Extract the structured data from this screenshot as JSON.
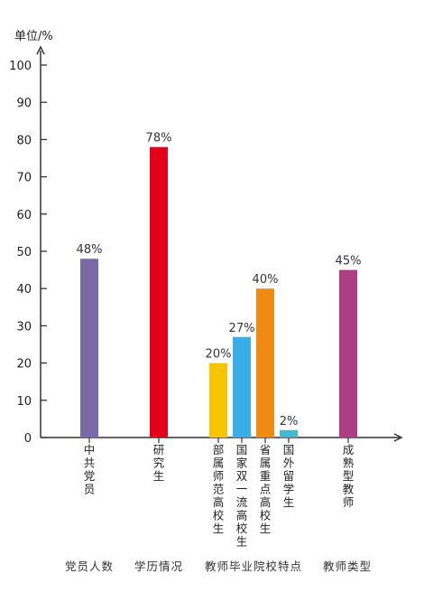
{
  "chart_data": {
    "type": "bar",
    "unit_label": "单位/%",
    "ylim": [
      0,
      100
    ],
    "yticks": [
      0,
      10,
      20,
      30,
      40,
      50,
      60,
      70,
      80,
      90,
      100
    ],
    "grid": false,
    "bars": [
      {
        "category": "中共党员",
        "value": 48,
        "label": "48%",
        "color": "#7b6aa8"
      },
      {
        "category": "研究生",
        "value": 78,
        "label": "78%",
        "color": "#e2001a"
      },
      {
        "category": "部属师范高校生",
        "value": 20,
        "label": "20%",
        "color": "#f8c400"
      },
      {
        "category": "国家双一流高校生",
        "value": 27,
        "label": "27%",
        "color": "#3aaee8"
      },
      {
        "category": "省属重点高校生",
        "value": 40,
        "label": "40%",
        "color": "#f08a13"
      },
      {
        "category": "国外留学生",
        "value": 2,
        "label": "2%",
        "color": "#46b8cf"
      },
      {
        "category": "成熟型教师",
        "value": 45,
        "label": "45%",
        "color": "#ad3e84"
      }
    ],
    "groups": [
      {
        "label": "党员人数"
      },
      {
        "label": "学历情况"
      },
      {
        "label": "教师毕业院校特点"
      },
      {
        "label": "教师类型"
      }
    ]
  }
}
